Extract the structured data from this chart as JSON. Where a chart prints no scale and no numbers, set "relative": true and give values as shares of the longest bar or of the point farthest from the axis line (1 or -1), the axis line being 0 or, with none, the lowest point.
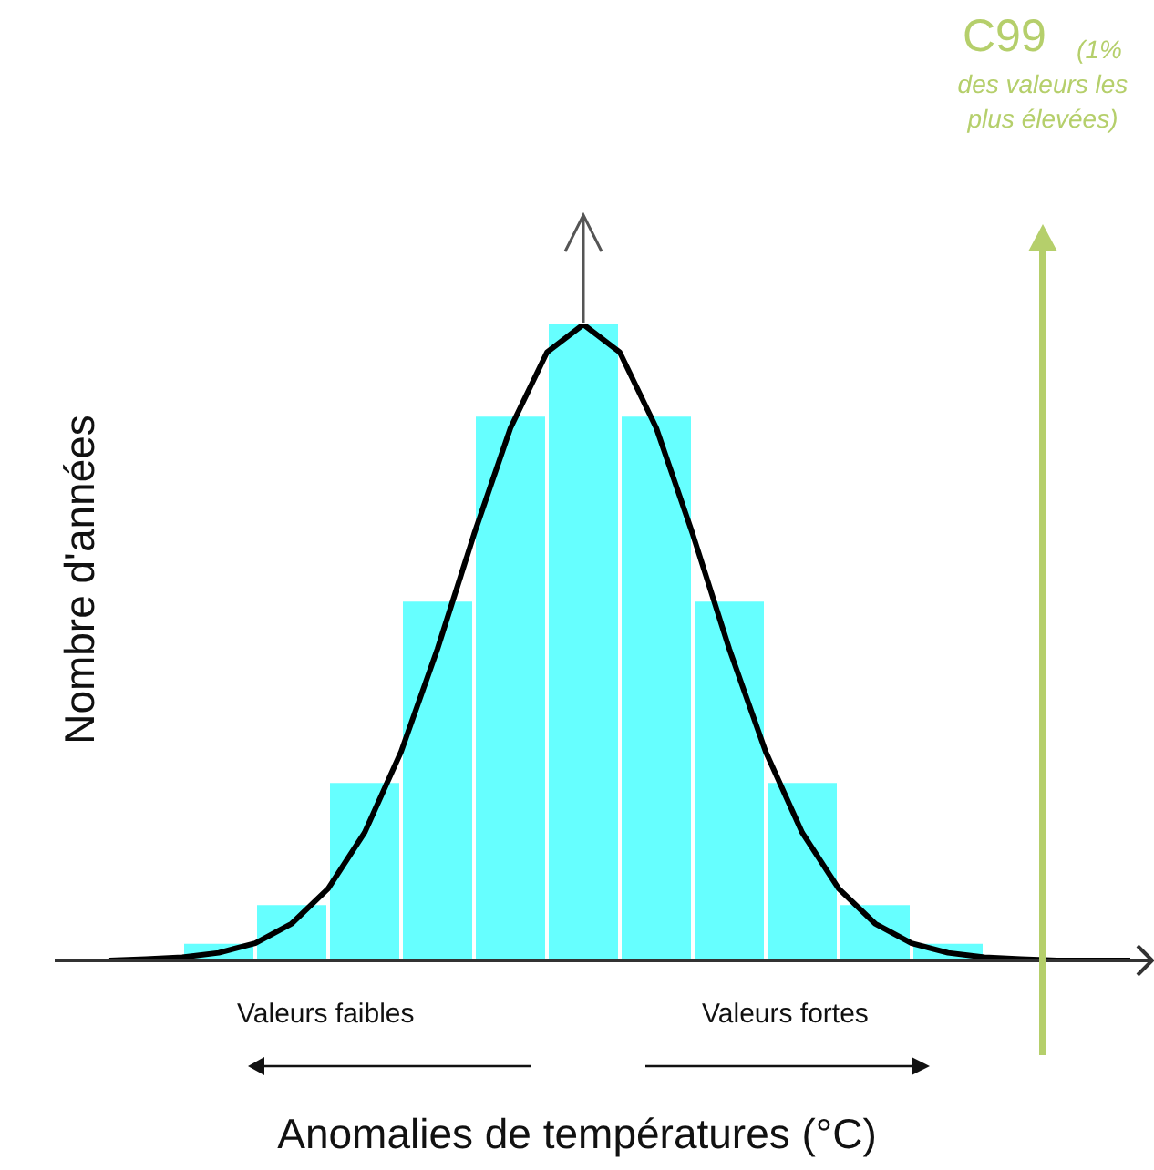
{
  "chart_data": [
    {
      "type": "bar",
      "relative": true,
      "color": "#66ffff",
      "xlabel": "Anomalies de températures (°C)",
      "ylabel": "Nombre d'années",
      "categories": [
        null,
        null,
        null,
        null,
        null,
        null,
        null,
        null,
        null,
        null,
        null
      ],
      "values": [
        0.026,
        0.087,
        0.279,
        0.564,
        0.855,
        1,
        0.855,
        0.564,
        0.279,
        0.087,
        0.026
      ],
      "annotations": [
        "C99",
        "(1% des valeurs les plus élevées)",
        "Valeurs faibles",
        "Valeurs fortes"
      ],
      "legend": false,
      "grid": false
    },
    {
      "type": "line",
      "relative": true,
      "color": "#000000",
      "categories": [
        null,
        null,
        null,
        null,
        null,
        null,
        null,
        null,
        null,
        null,
        null,
        null,
        null,
        null,
        null,
        null,
        null,
        null,
        null,
        null,
        null,
        null,
        null,
        null,
        null,
        null,
        null,
        null,
        null
      ],
      "values": [
        0,
        0.002,
        0.005,
        0.012,
        0.027,
        0.058,
        0.113,
        0.201,
        0.328,
        0.49,
        0.67,
        0.837,
        0.956,
        1,
        0.956,
        0.837,
        0.67,
        0.49,
        0.328,
        0.201,
        0.113,
        0.058,
        0.027,
        0.012,
        0.005,
        0.002,
        0,
        0,
        0
      ],
      "legend": false,
      "grid": false,
      "marker": "none",
      "line_style": "solid"
    }
  ]
}
